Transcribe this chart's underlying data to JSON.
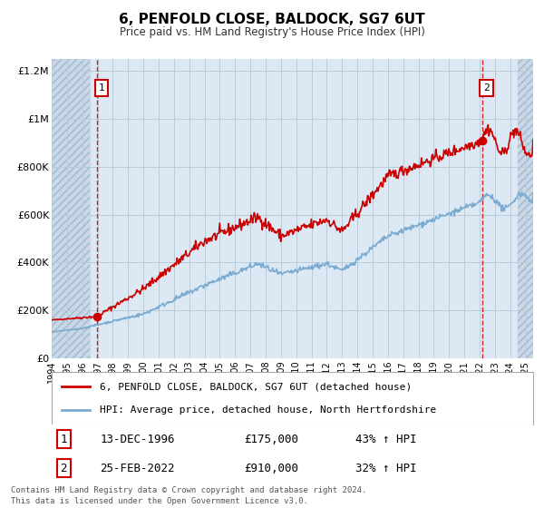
{
  "title": "6, PENFOLD CLOSE, BALDOCK, SG7 6UT",
  "subtitle": "Price paid vs. HM Land Registry's House Price Index (HPI)",
  "background_color": "#ffffff",
  "plot_bg_color": "#dce9f5",
  "hatch_color": "#c8d8e8",
  "grid_color": "#b8ccd8",
  "red_line_color": "#cc0000",
  "blue_line_color": "#7aaad0",
  "marker1_x": 1996.96,
  "marker1_y": 175000,
  "marker2_x": 2022.15,
  "marker2_y": 910000,
  "vline1_x": 1996.96,
  "vline2_x": 2022.15,
  "xlim": [
    1994.0,
    2025.5
  ],
  "ylim": [
    0,
    1250000
  ],
  "yticks": [
    0,
    200000,
    400000,
    600000,
    800000,
    1000000,
    1200000
  ],
  "ytick_labels": [
    "£0",
    "£200K",
    "£400K",
    "£600K",
    "£800K",
    "£1M",
    "£1.2M"
  ],
  "xticks": [
    1994,
    1995,
    1996,
    1997,
    1998,
    1999,
    2000,
    2001,
    2002,
    2003,
    2004,
    2005,
    2006,
    2007,
    2008,
    2009,
    2010,
    2011,
    2012,
    2013,
    2014,
    2015,
    2016,
    2017,
    2018,
    2019,
    2020,
    2021,
    2022,
    2023,
    2024,
    2025
  ],
  "hatch_left_end": 1996.5,
  "hatch_right_start": 2024.5,
  "legend_label_red": "6, PENFOLD CLOSE, BALDOCK, SG7 6UT (detached house)",
  "legend_label_blue": "HPI: Average price, detached house, North Hertfordshire",
  "table_row1": [
    "1",
    "13-DEC-1996",
    "£175,000",
    "43% ↑ HPI"
  ],
  "table_row2": [
    "2",
    "25-FEB-2022",
    "£910,000",
    "32% ↑ HPI"
  ],
  "footer1": "Contains HM Land Registry data © Crown copyright and database right 2024.",
  "footer2": "This data is licensed under the Open Government Licence v3.0."
}
